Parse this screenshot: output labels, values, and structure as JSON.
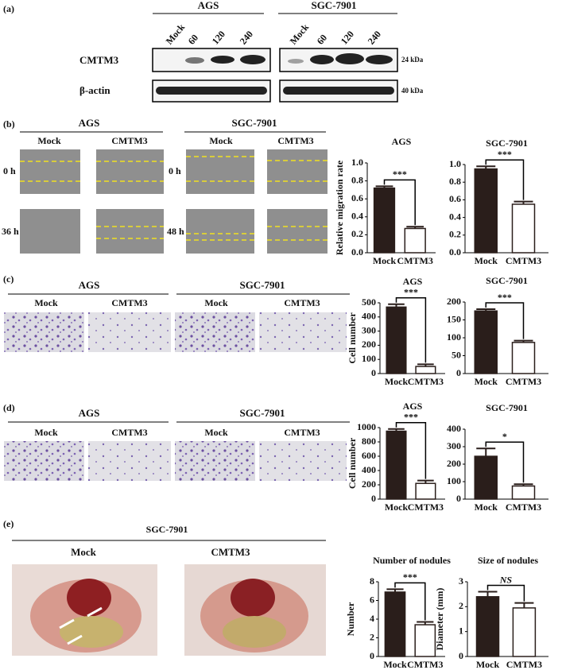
{
  "panel_labels": [
    "(a)",
    "(b)",
    "(c)",
    "(d)",
    "(e)"
  ],
  "western": {
    "groups": [
      "AGS",
      "SGC-7901"
    ],
    "lanes": [
      "Mock",
      "60",
      "120",
      "240"
    ],
    "rows": [
      "CMTM3",
      "β-actin"
    ],
    "sizes": [
      "24 kDa",
      "40 kDa"
    ]
  },
  "migration": {
    "groups": [
      "AGS",
      "SGC-7901"
    ],
    "conditions": [
      "Mock",
      "CMTM3"
    ],
    "times": [
      "0 h",
      "36 h",
      "48 h"
    ]
  },
  "transwell": {
    "groups": [
      "AGS",
      "SGC-7901"
    ],
    "conditions": [
      "Mock",
      "CMTM3"
    ]
  },
  "invasion": {
    "groups": [
      "AGS",
      "SGC-7901"
    ],
    "conditions": [
      "Mock",
      "CMTM3"
    ]
  },
  "in_vivo": {
    "group": "SGC-7901",
    "conditions": [
      "Mock",
      "CMTM3"
    ]
  },
  "chart_data": [
    {
      "type": "bar",
      "title": "AGS",
      "y_label": "Relative migration rate",
      "categories": [
        "Mock",
        "CMTM3"
      ],
      "values": [
        0.72,
        0.27
      ],
      "errors": [
        0.02,
        0.02
      ],
      "colors": [
        "#2a1e1b",
        "#ffffff"
      ],
      "significance": "***",
      "ylim": [
        0,
        1.0
      ],
      "yticks": [
        {
          "value": 0,
          "label": "0.0"
        },
        0.2,
        0.4,
        0.6,
        0.8,
        {
          "value": 1,
          "label": "1.0"
        }
      ]
    },
    {
      "type": "bar",
      "title": "SGC-7901",
      "categories": [
        "Mock",
        "CMTM3"
      ],
      "values": [
        0.95,
        0.55
      ],
      "errors": [
        0.03,
        0.03
      ],
      "colors": [
        "#2a1e1b",
        "#ffffff"
      ],
      "significance": "***",
      "ylim": [
        0,
        1.0
      ],
      "yticks": [
        {
          "value": 0,
          "label": "0.0"
        },
        0.2,
        0.4,
        0.6,
        0.8,
        {
          "value": 1,
          "label": "1.0"
        }
      ]
    },
    {
      "type": "bar",
      "title": "AGS",
      "y_label": "Cell number",
      "categories": [
        "Mock",
        "CMTM3"
      ],
      "values": [
        470,
        50
      ],
      "errors": [
        20,
        15
      ],
      "colors": [
        "#2a1e1b",
        "#ffffff"
      ],
      "significance": "***",
      "ylim": [
        0,
        500
      ],
      "yticks": [
        0,
        100,
        200,
        300,
        400,
        500
      ]
    },
    {
      "type": "bar",
      "title": "SGC-7901",
      "categories": [
        "Mock",
        "CMTM3"
      ],
      "values": [
        175,
        87
      ],
      "errors": [
        5,
        5
      ],
      "colors": [
        "#2a1e1b",
        "#ffffff"
      ],
      "significance": "***",
      "ylim": [
        0,
        200
      ],
      "yticks": [
        0,
        50,
        100,
        150,
        200
      ]
    },
    {
      "type": "bar",
      "title": "AGS",
      "y_label": "Cell number",
      "categories": [
        "Mock",
        "CMTM3"
      ],
      "values": [
        950,
        220
      ],
      "errors": [
        30,
        40
      ],
      "colors": [
        "#2a1e1b",
        "#ffffff"
      ],
      "significance": "***",
      "ylim": [
        0,
        1000
      ],
      "yticks": [
        0,
        200,
        400,
        600,
        800,
        1000
      ]
    },
    {
      "type": "bar",
      "title": "SGC-7901",
      "categories": [
        "Mock",
        "CMTM3"
      ],
      "values": [
        245,
        75
      ],
      "errors": [
        45,
        10
      ],
      "colors": [
        "#2a1e1b",
        "#ffffff"
      ],
      "significance": "*",
      "ylim": [
        0,
        400
      ],
      "yticks": [
        0,
        100,
        200,
        300,
        400
      ]
    },
    {
      "type": "bar",
      "title": "Number of nodules",
      "y_label": "Number",
      "categories": [
        "Mock",
        "CMTM3"
      ],
      "values": [
        6.9,
        3.4
      ],
      "errors": [
        0.3,
        0.3
      ],
      "colors": [
        "#2a1e1b",
        "#ffffff"
      ],
      "significance": "***",
      "ylim": [
        0,
        8
      ],
      "yticks": [
        0,
        2,
        4,
        6,
        8
      ]
    },
    {
      "type": "bar",
      "title": "Size of nodules",
      "y_label": "Diameter (mm)",
      "categories": [
        "Mock",
        "CMTM3"
      ],
      "values": [
        2.4,
        1.95
      ],
      "errors": [
        0.2,
        0.2
      ],
      "colors": [
        "#2a1e1b",
        "#ffffff"
      ],
      "significance": "NS",
      "ylim": [
        0,
        3
      ],
      "yticks": [
        0,
        1,
        2,
        3
      ]
    }
  ]
}
